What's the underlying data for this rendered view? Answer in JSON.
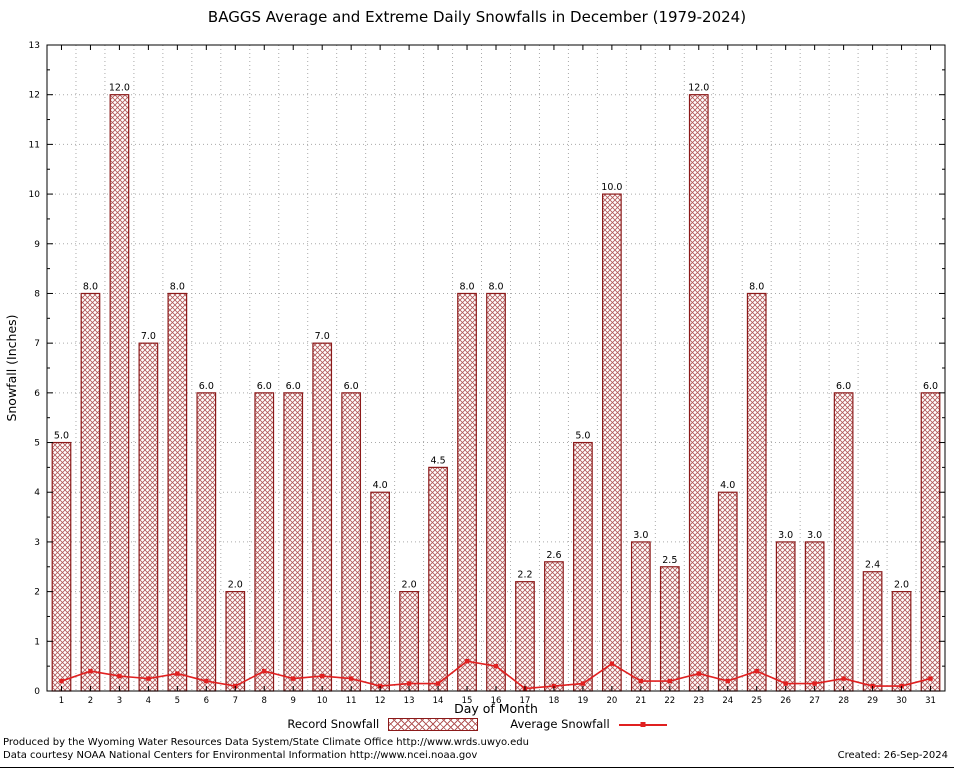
{
  "page": {
    "footer_line1": "Produced by the Wyoming Water Resources Data System/State Climate Office http://www.wrds.uwyo.edu",
    "footer_line2": "Data courtesy NOAA National Centers for Environmental Information http://www.ncei.noaa.gov",
    "created": "Created: 26-Sep-2024"
  },
  "colors": {
    "bar_edge": "#8b1a1a",
    "bar_hatch": "#b25858",
    "line": "#e02020",
    "grid": "#aaaaaa",
    "frame": "#000000",
    "text": "#000000"
  },
  "chart_data": {
    "type": "bar",
    "title": "BAGGS Average and Extreme Daily Snowfalls in December (1979-2024)",
    "xlabel": "Day of Month",
    "ylabel": "Snowfall (Inches)",
    "ylim": [
      0,
      13
    ],
    "y_ticks": [
      0,
      1,
      2,
      3,
      4,
      5,
      6,
      7,
      8,
      9,
      10,
      11,
      12,
      13
    ],
    "grid": true,
    "legend_position": "bottom",
    "categories": [
      "1",
      "2",
      "3",
      "4",
      "5",
      "6",
      "7",
      "8",
      "9",
      "10",
      "11",
      "12",
      "13",
      "14",
      "15",
      "16",
      "17",
      "18",
      "19",
      "20",
      "21",
      "22",
      "23",
      "24",
      "25",
      "26",
      "27",
      "28",
      "29",
      "30",
      "31"
    ],
    "bar_labels": [
      "5.0",
      "8.0",
      "12.0",
      "7.0",
      "8.0",
      "6.0",
      "2.0",
      "6.0",
      "6.0",
      "7.0",
      "6.0",
      "4.0",
      "2.0",
      "4.5",
      "8.0",
      "8.0",
      "2.2",
      "2.6",
      "5.0",
      "10.0",
      "3.0",
      "2.5",
      "12.0",
      "4.0",
      "8.0",
      "3.0",
      "3.0",
      "6.0",
      "2.4",
      "2.0",
      "6.0"
    ],
    "series": [
      {
        "name": "Record Snowfall",
        "type": "bar",
        "color": "#8b1a1a",
        "values": [
          5,
          8,
          12,
          7,
          8,
          6,
          2,
          6,
          6,
          7,
          6,
          4,
          2,
          4.5,
          8,
          8,
          2.2,
          2.6,
          5,
          10,
          3,
          2.5,
          12,
          4,
          8,
          3,
          3,
          6,
          2.4,
          2,
          6
        ]
      },
      {
        "name": "Average Snowfall",
        "type": "line",
        "color": "#e02020",
        "values": [
          0.2,
          0.4,
          0.3,
          0.25,
          0.35,
          0.2,
          0.1,
          0.4,
          0.25,
          0.3,
          0.25,
          0.1,
          0.15,
          0.15,
          0.6,
          0.5,
          0.05,
          0.1,
          0.15,
          0.55,
          0.2,
          0.2,
          0.35,
          0.2,
          0.4,
          0.15,
          0.15,
          0.25,
          0.1,
          0.1,
          0.25
        ]
      }
    ]
  }
}
